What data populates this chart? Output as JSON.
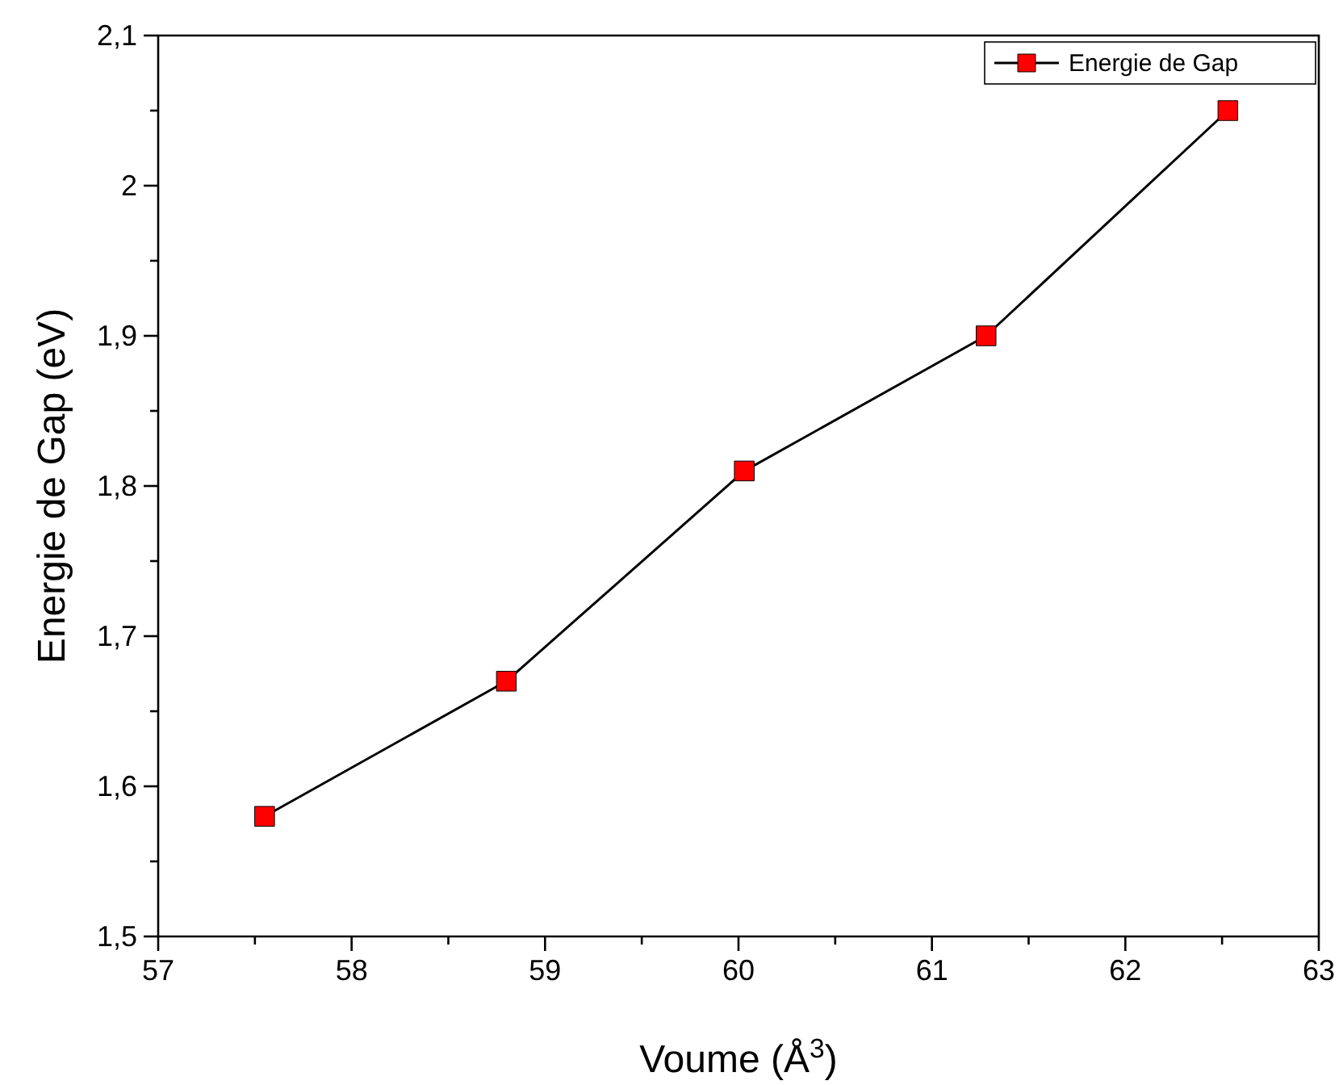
{
  "chart_data": {
    "type": "line",
    "xlabel": "Voume (Å$^{3}$)",
    "ylabel": "Energie de Gap (eV)",
    "x": [
      57.55,
      58.8,
      60.03,
      61.28,
      62.53
    ],
    "series": [
      {
        "name": "Energie de Gap",
        "color": "#ff0000",
        "values": [
          1.58,
          1.67,
          1.81,
          1.9,
          2.05
        ]
      }
    ],
    "xlim": [
      57,
      63
    ],
    "xticks": [
      57,
      {
        "value": 57.5,
        "label": null
      },
      58,
      {
        "value": 58.5,
        "label": null
      },
      59,
      {
        "value": 59.5,
        "label": null
      },
      60,
      {
        "value": 60.5,
        "label": null
      },
      61,
      {
        "value": 61.5,
        "label": null
      },
      62,
      {
        "value": 62.5,
        "label": null
      },
      63
    ],
    "ylim": [
      1.5,
      2.1
    ],
    "yticks": [
      {
        "value": 1.5,
        "label": "1,5"
      },
      {
        "value": 1.55,
        "label": null
      },
      {
        "value": 1.6,
        "label": "1,6"
      },
      {
        "value": 1.65,
        "label": null
      },
      {
        "value": 1.7,
        "label": "1,7"
      },
      {
        "value": 1.75,
        "label": null
      },
      {
        "value": 1.8,
        "label": "1,8"
      },
      {
        "value": 1.85,
        "label": null
      },
      {
        "value": 1.9,
        "label": "1,9"
      },
      {
        "value": 1.95,
        "label": null
      },
      2,
      {
        "value": 2.05,
        "label": null
      },
      {
        "value": 2.1,
        "label": "2,1"
      }
    ],
    "marker": "square",
    "line_style": "solid",
    "legend": "top right",
    "grid": false
  }
}
